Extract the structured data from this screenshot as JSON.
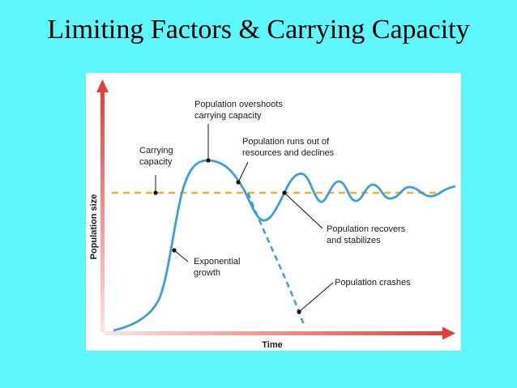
{
  "title": "Limiting Factors & Carrying Capacity",
  "diagram": {
    "x_axis_label": "Time",
    "y_axis_label": "Population size",
    "annotations": {
      "carrying_capacity": [
        "Carrying",
        "capacity"
      ],
      "overshoot": [
        "Population overshoots",
        "carrying capacity"
      ],
      "runs_out": [
        "Population runs out of",
        "resources and declines"
      ],
      "recovers": [
        "Population recovers",
        "and stabilizes"
      ],
      "exponential": [
        "Exponential",
        "growth"
      ],
      "crashes": [
        "Population crashes"
      ]
    },
    "colors": {
      "background": "#5cf6fb",
      "curve": "#3d9fd6",
      "carrying_capacity_line": "#f0b429",
      "axis_arrow": "#e2403a",
      "marker": "#111111"
    }
  }
}
